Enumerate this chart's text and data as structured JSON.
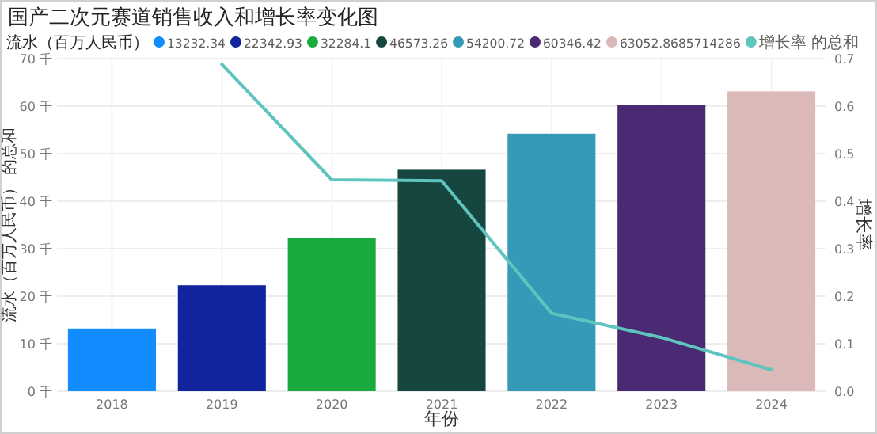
{
  "chart_data": {
    "type": "bar",
    "title": "国产二次元赛道销售收入和增长率变化图",
    "xlabel": "年份",
    "ylabel": "流水（百万人民币） 的总和",
    "y2label": "增长率",
    "legend_title": "流水（百万人民币）",
    "categories": [
      "2018",
      "2019",
      "2020",
      "2021",
      "2022",
      "2023",
      "2024"
    ],
    "stacked": true,
    "series": [
      {
        "name": "13232.34",
        "color": "#118dff",
        "values": [
          13.2,
          null,
          null,
          null,
          null,
          null,
          null
        ]
      },
      {
        "name": "22342.93",
        "color": "#12239e",
        "values": [
          null,
          22.3,
          null,
          null,
          null,
          null,
          null
        ]
      },
      {
        "name": "32284.1",
        "color": "#1aab40",
        "values": [
          null,
          null,
          32.3,
          null,
          null,
          null,
          null
        ]
      },
      {
        "name": "46573.26",
        "color": "#15463f",
        "values": [
          null,
          null,
          null,
          46.6,
          null,
          null,
          null
        ]
      },
      {
        "name": "54200.72",
        "color": "#3599b8",
        "values": [
          null,
          null,
          null,
          null,
          54.2,
          null,
          null
        ]
      },
      {
        "name": "60346.42",
        "color": "#4a2a72",
        "values": [
          null,
          null,
          null,
          null,
          null,
          60.3,
          null
        ]
      },
      {
        "name": "63052.8685714286",
        "color": "#dbb9b9",
        "values": [
          null,
          null,
          null,
          null,
          null,
          null,
          63.1
        ]
      },
      {
        "name": "增长率 的总和",
        "type": "line",
        "axis": "y2",
        "color": "#5fc4bd",
        "values": [
          null,
          0.688,
          0.445,
          0.443,
          0.164,
          0.113,
          0.045
        ]
      }
    ],
    "ylim": [
      0,
      70
    ],
    "yticks": [
      {
        "value": 0,
        "label": "0 千"
      },
      {
        "value": 10,
        "label": "10 千"
      },
      {
        "value": 20,
        "label": "20 千"
      },
      {
        "value": 30,
        "label": "30 千"
      },
      {
        "value": 40,
        "label": "40 千"
      },
      {
        "value": 50,
        "label": "50 千"
      },
      {
        "value": 60,
        "label": "60 千"
      },
      {
        "value": 70,
        "label": "70 千"
      }
    ],
    "y2lim": [
      0,
      0.7
    ],
    "y2ticks": [
      {
        "value": 0,
        "label": "0.0"
      },
      0.1,
      0.2,
      0.3,
      0.4,
      0.5,
      0.6,
      0.7
    ],
    "grid": true,
    "legend": "top"
  }
}
